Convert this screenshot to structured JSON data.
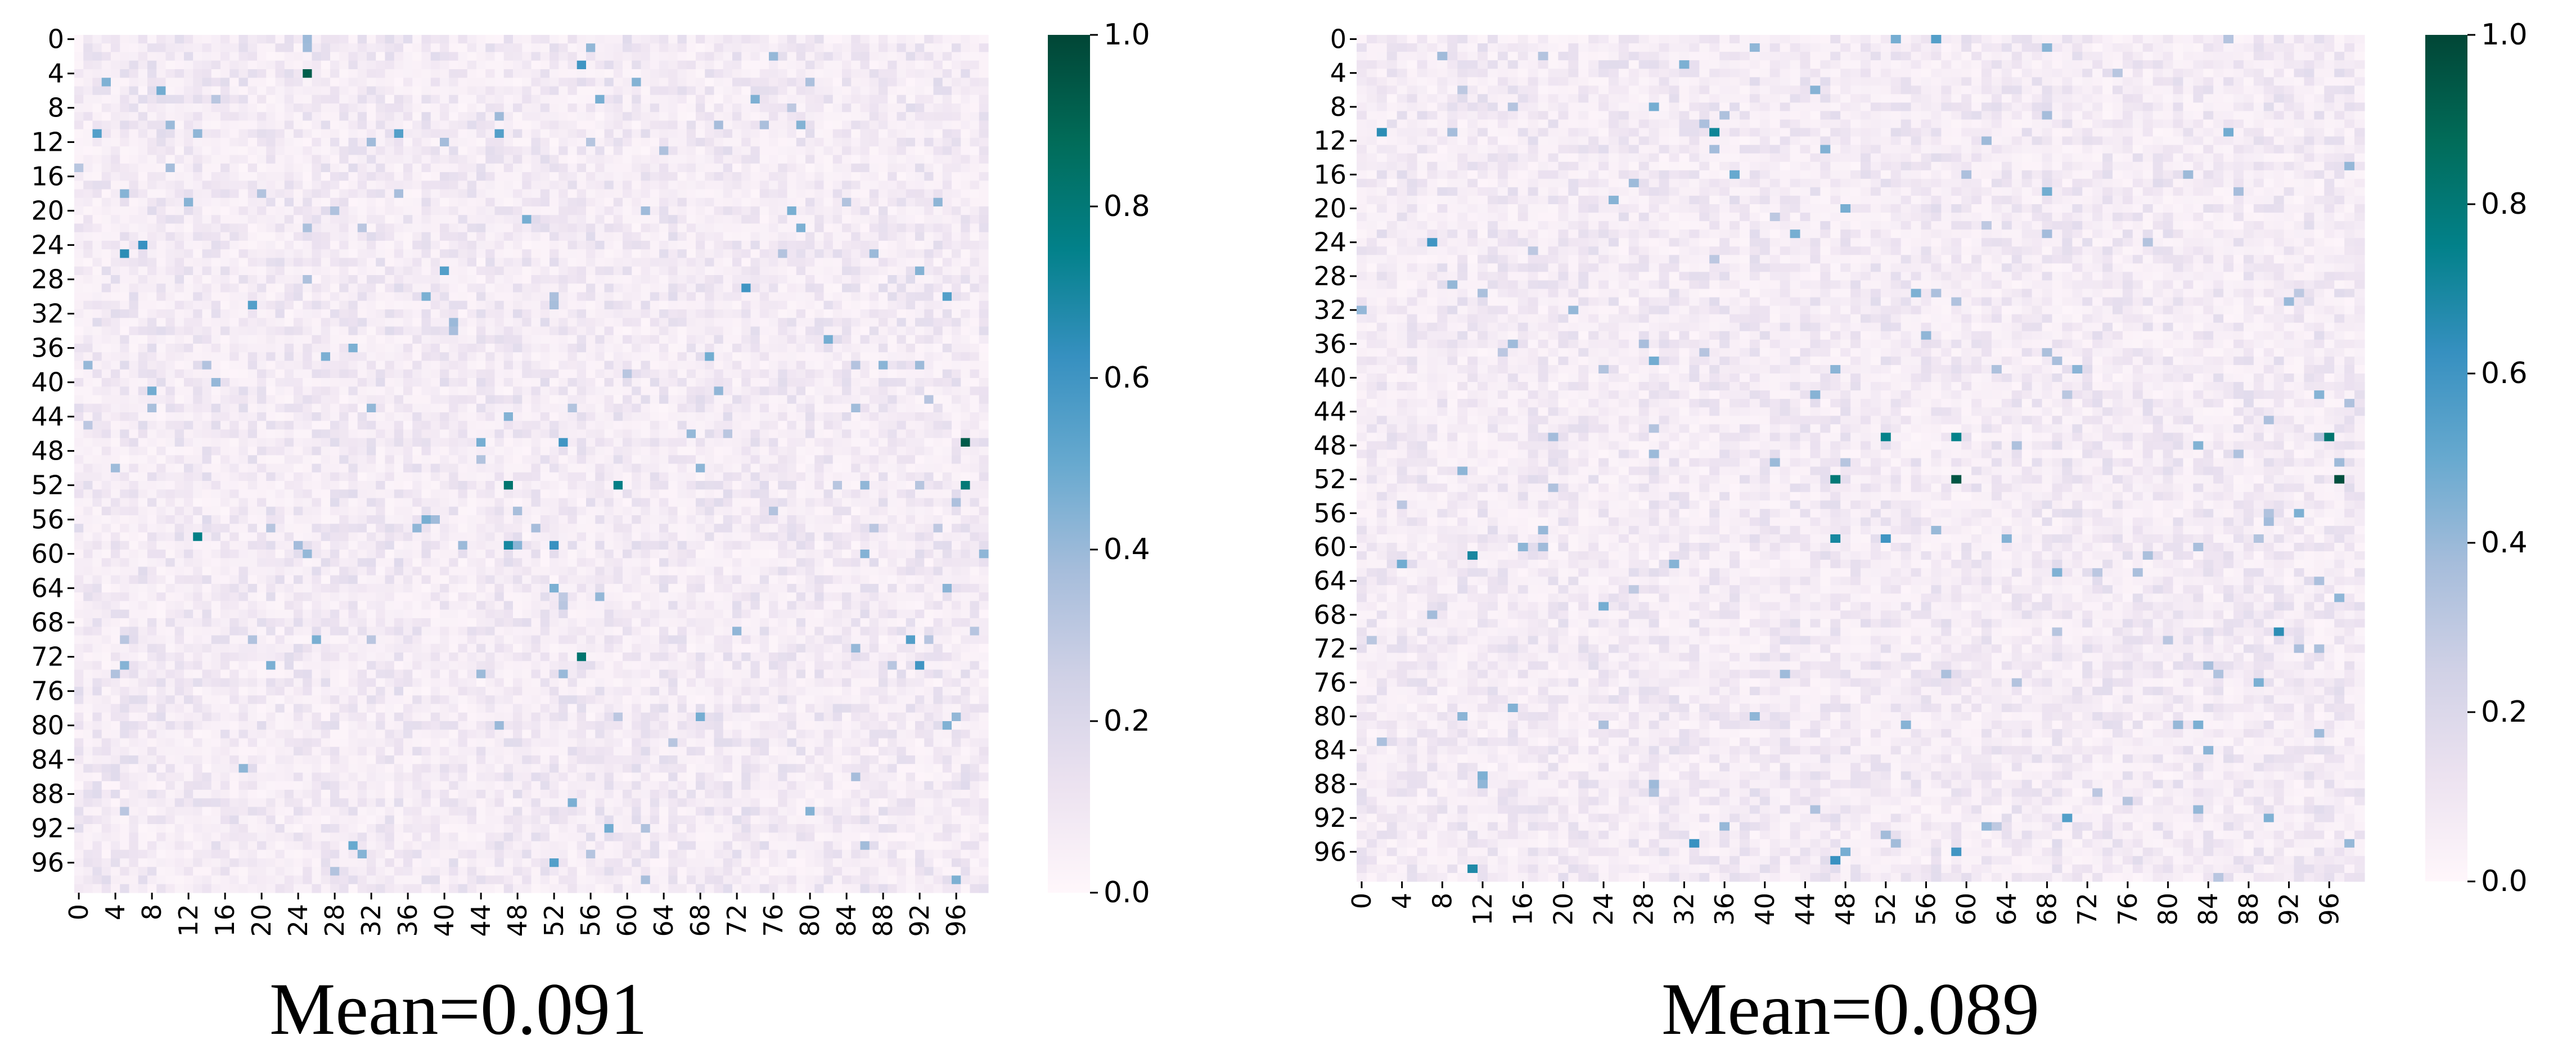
{
  "colormap": {
    "name": "PuBuGn",
    "stops": [
      {
        "v": 0.0,
        "c": "#fff7fb"
      },
      {
        "v": 0.125,
        "c": "#ece2f0"
      },
      {
        "v": 0.25,
        "c": "#d0d1e6"
      },
      {
        "v": 0.375,
        "c": "#a6bddb"
      },
      {
        "v": 0.5,
        "c": "#67a9cf"
      },
      {
        "v": 0.625,
        "c": "#3690c0"
      },
      {
        "v": 0.75,
        "c": "#02818a"
      },
      {
        "v": 0.875,
        "c": "#016c59"
      },
      {
        "v": 1.0,
        "c": "#014636"
      }
    ]
  },
  "chart_data": [
    {
      "type": "heatmap",
      "rows": 100,
      "cols": 100,
      "tick_step": 4,
      "row_tick_labels": [
        "0",
        "4",
        "8",
        "12",
        "16",
        "20",
        "24",
        "28",
        "32",
        "36",
        "40",
        "44",
        "48",
        "52",
        "56",
        "60",
        "64",
        "68",
        "72",
        "76",
        "80",
        "84",
        "88",
        "92",
        "96"
      ],
      "col_tick_labels": [
        "0",
        "4",
        "8",
        "12",
        "16",
        "20",
        "24",
        "28",
        "32",
        "36",
        "40",
        "44",
        "48",
        "52",
        "56",
        "60",
        "64",
        "68",
        "72",
        "76",
        "80",
        "84",
        "88",
        "92",
        "96"
      ],
      "value_range": [
        0,
        1
      ],
      "colorbar_ticks": [
        "0.0",
        "0.2",
        "0.4",
        "0.6",
        "0.8",
        "1.0"
      ],
      "background_mean": 0.085,
      "seed": 7,
      "caption": "Mean=0.091",
      "highlights": [
        {
          "row": 4,
          "col": 25,
          "value": 0.92
        },
        {
          "row": 3,
          "col": 55,
          "value": 0.6
        },
        {
          "row": 11,
          "col": 2,
          "value": 0.55
        },
        {
          "row": 11,
          "col": 35,
          "value": 0.55
        },
        {
          "row": 11,
          "col": 46,
          "value": 0.55
        },
        {
          "row": 24,
          "col": 7,
          "value": 0.62
        },
        {
          "row": 25,
          "col": 5,
          "value": 0.65
        },
        {
          "row": 27,
          "col": 40,
          "value": 0.55
        },
        {
          "row": 29,
          "col": 73,
          "value": 0.6
        },
        {
          "row": 30,
          "col": 95,
          "value": 0.55
        },
        {
          "row": 31,
          "col": 19,
          "value": 0.55
        },
        {
          "row": 47,
          "col": 53,
          "value": 0.6
        },
        {
          "row": 47,
          "col": 97,
          "value": 0.93
        },
        {
          "row": 52,
          "col": 47,
          "value": 0.82
        },
        {
          "row": 52,
          "col": 59,
          "value": 0.76
        },
        {
          "row": 52,
          "col": 97,
          "value": 0.8
        },
        {
          "row": 58,
          "col": 13,
          "value": 0.76
        },
        {
          "row": 59,
          "col": 47,
          "value": 0.7
        },
        {
          "row": 59,
          "col": 52,
          "value": 0.62
        },
        {
          "row": 70,
          "col": 91,
          "value": 0.55
        },
        {
          "row": 72,
          "col": 55,
          "value": 0.82
        },
        {
          "row": 73,
          "col": 92,
          "value": 0.6
        },
        {
          "row": 96,
          "col": 52,
          "value": 0.55
        },
        {
          "row": 94,
          "col": 30,
          "value": 0.5
        }
      ]
    },
    {
      "type": "heatmap",
      "rows": 100,
      "cols": 100,
      "tick_step": 4,
      "row_tick_labels": [
        "0",
        "4",
        "8",
        "12",
        "16",
        "20",
        "24",
        "28",
        "32",
        "36",
        "40",
        "44",
        "48",
        "52",
        "56",
        "60",
        "64",
        "68",
        "72",
        "76",
        "80",
        "84",
        "88",
        "92",
        "96"
      ],
      "col_tick_labels": [
        "0",
        "4",
        "8",
        "12",
        "16",
        "20",
        "24",
        "28",
        "32",
        "36",
        "40",
        "44",
        "48",
        "52",
        "56",
        "60",
        "64",
        "68",
        "72",
        "76",
        "80",
        "84",
        "88",
        "92",
        "96"
      ],
      "value_range": [
        0,
        1
      ],
      "colorbar_ticks": [
        "0.0",
        "0.2",
        "0.4",
        "0.6",
        "0.8",
        "1.0"
      ],
      "background_mean": 0.083,
      "seed": 19,
      "caption": "Mean=0.089",
      "highlights": [
        {
          "row": 0,
          "col": 57,
          "value": 0.55
        },
        {
          "row": 11,
          "col": 2,
          "value": 0.65
        },
        {
          "row": 11,
          "col": 35,
          "value": 0.72
        },
        {
          "row": 16,
          "col": 37,
          "value": 0.5
        },
        {
          "row": 24,
          "col": 7,
          "value": 0.6
        },
        {
          "row": 47,
          "col": 52,
          "value": 0.75
        },
        {
          "row": 47,
          "col": 59,
          "value": 0.75
        },
        {
          "row": 47,
          "col": 96,
          "value": 0.82
        },
        {
          "row": 52,
          "col": 47,
          "value": 0.8
        },
        {
          "row": 52,
          "col": 59,
          "value": 0.95
        },
        {
          "row": 52,
          "col": 97,
          "value": 0.97
        },
        {
          "row": 59,
          "col": 47,
          "value": 0.7
        },
        {
          "row": 59,
          "col": 52,
          "value": 0.6
        },
        {
          "row": 61,
          "col": 11,
          "value": 0.7
        },
        {
          "row": 70,
          "col": 91,
          "value": 0.65
        },
        {
          "row": 92,
          "col": 70,
          "value": 0.55
        },
        {
          "row": 96,
          "col": 59,
          "value": 0.6
        },
        {
          "row": 97,
          "col": 47,
          "value": 0.62
        },
        {
          "row": 98,
          "col": 11,
          "value": 0.68
        },
        {
          "row": 95,
          "col": 33,
          "value": 0.62
        }
      ]
    }
  ]
}
